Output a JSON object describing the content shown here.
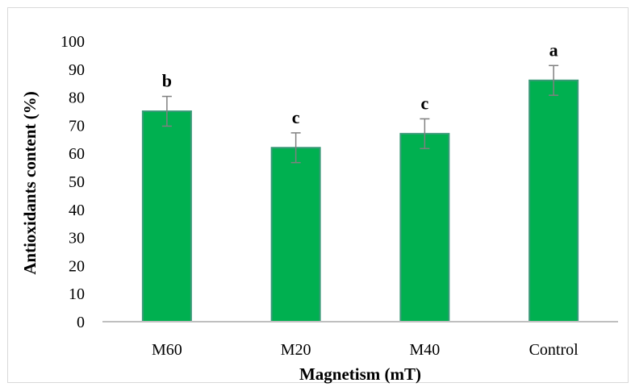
{
  "chart_data": {
    "type": "bar",
    "title": "",
    "xlabel": "Magnetism (mT)",
    "ylabel": "Antioxidants content (%)",
    "categories": [
      "M60",
      "M20",
      "M40",
      "Control"
    ],
    "values": [
      75,
      62,
      67,
      86
    ],
    "error": [
      5.3,
      5.3,
      5.3,
      5.3
    ],
    "significance_labels": [
      "b",
      "c",
      "c",
      "a"
    ],
    "ylim": [
      0,
      100
    ],
    "yticks": [
      "0",
      "10",
      "20",
      "30",
      "40",
      "50",
      "60",
      "70",
      "80",
      "90",
      "100"
    ],
    "grid": false,
    "legend": "none",
    "colors": {
      "bar": "#00b050",
      "bar_edge": "#3a9a78",
      "error_bar": "#808080",
      "axis": "#bfbfbf"
    }
  }
}
